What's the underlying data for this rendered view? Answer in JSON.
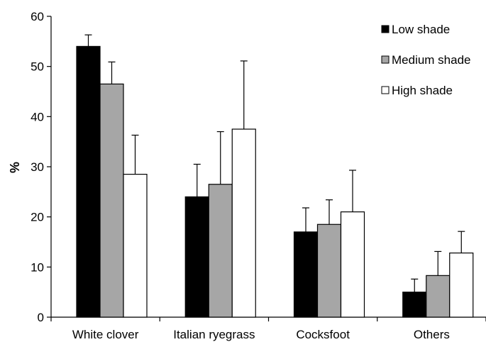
{
  "chart_data": {
    "type": "bar",
    "title": "",
    "xlabel": "",
    "ylabel": "%",
    "ylim": [
      0,
      60
    ],
    "yticks": [
      "0",
      "10",
      "20",
      "30",
      "40",
      "50",
      "60"
    ],
    "grid": false,
    "legend_position": "top-right",
    "categories": [
      "White clover",
      "Italian ryegrass",
      "Cocksfoot",
      "Others"
    ],
    "series": [
      {
        "name": "Low shade",
        "color": "#000000",
        "values": [
          54,
          24,
          17,
          5
        ],
        "errors": [
          2.3,
          6.5,
          4.8,
          2.6
        ]
      },
      {
        "name": "Medium shade",
        "color": "#a6a6a6",
        "values": [
          46.5,
          26.5,
          18.5,
          8.3
        ],
        "errors": [
          4.4,
          10.5,
          4.9,
          4.8
        ]
      },
      {
        "name": "High shade",
        "color": "#ffffff",
        "values": [
          28.5,
          37.5,
          21,
          12.8
        ],
        "errors": [
          7.8,
          13.6,
          8.3,
          4.3
        ]
      }
    ]
  }
}
